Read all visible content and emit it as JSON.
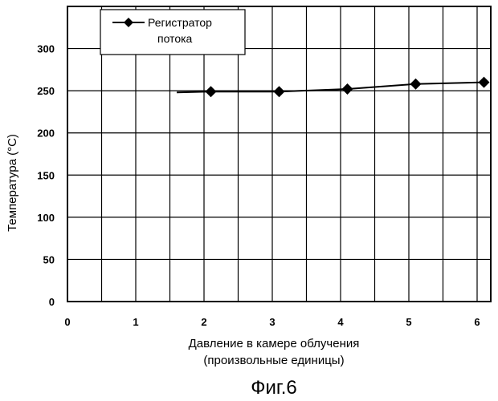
{
  "chart_data": {
    "type": "line",
    "x": [
      2.1,
      3.1,
      4.1,
      5.1,
      6.1
    ],
    "series": [
      {
        "name": "Регистратор потока",
        "values": [
          249,
          249,
          252,
          258,
          260
        ]
      }
    ],
    "trend_line_start": {
      "x": 1.6,
      "y": 248
    },
    "xlabel_line1": "Давление в камере облучения",
    "xlabel_line2": "(произвольные единицы)",
    "ylabel": "Температура (°C)",
    "xlim": [
      0,
      6.2
    ],
    "ylim": [
      0,
      350
    ],
    "xticks": [
      0,
      1,
      2,
      3,
      4,
      5,
      6
    ],
    "yticks": [
      0,
      50,
      100,
      150,
      200,
      250,
      300
    ],
    "grid": true,
    "legend": {
      "line1": "Регистратор",
      "line2": "потока",
      "placement": "top-left"
    },
    "series_color": "#000000",
    "caption": "Фиг.6"
  }
}
